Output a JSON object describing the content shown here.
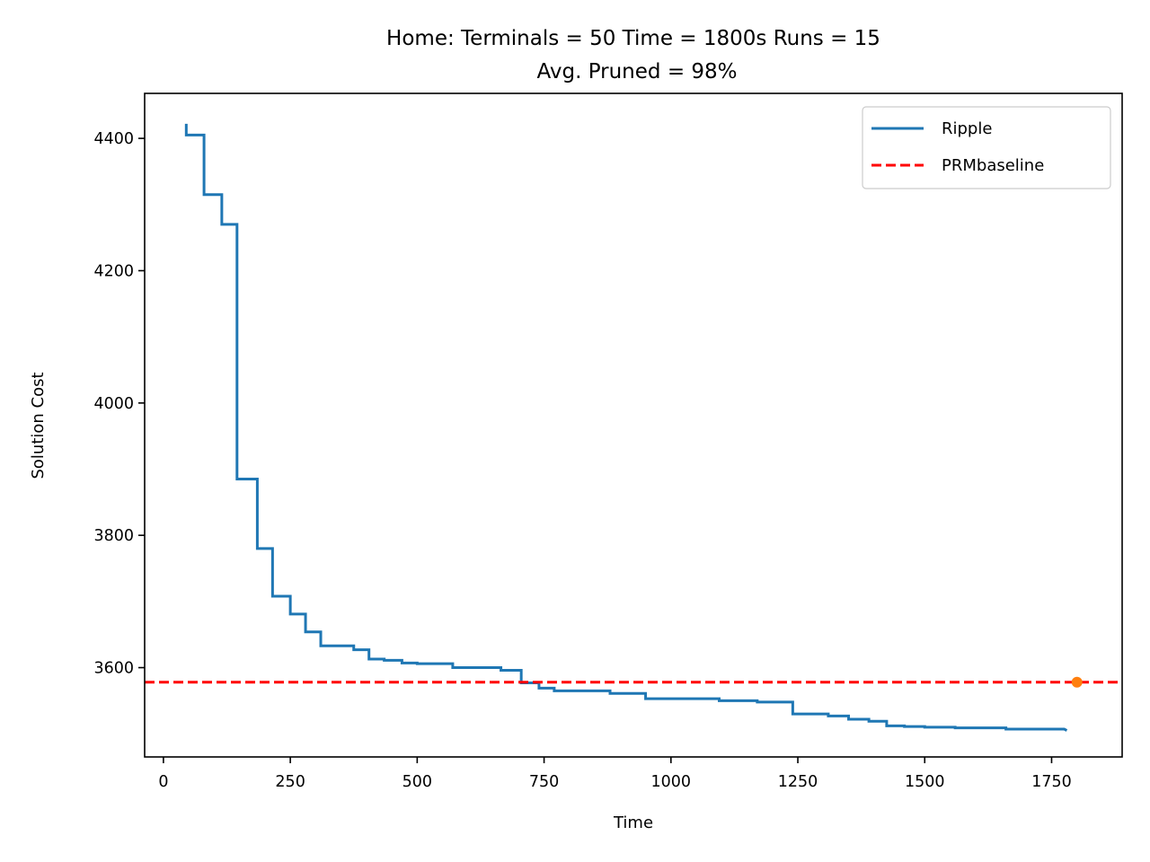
{
  "chart_data": {
    "type": "line",
    "title": "Home:  Terminals = 50  Time = 1800s  Runs = 15",
    "subtitle": "Avg. Pruned = 98%",
    "xlabel": "Time",
    "ylabel": "Solution Cost",
    "xlim": [
      -37,
      1889
    ],
    "ylim": [
      3465,
      4468
    ],
    "xticks": [
      0,
      250,
      500,
      750,
      1000,
      1250,
      1500,
      1750
    ],
    "yticks": [
      3600,
      3800,
      4000,
      4200,
      4400
    ],
    "legend_position": "top-right",
    "series": [
      {
        "name": "Ripple",
        "style": "step",
        "color": "#1f77b4",
        "x": [
          45,
          45,
          80,
          80,
          115,
          115,
          145,
          145,
          185,
          185,
          215,
          215,
          250,
          250,
          280,
          280,
          310,
          310,
          375,
          375,
          405,
          405,
          435,
          435,
          470,
          470,
          500,
          500,
          570,
          570,
          665,
          665,
          705,
          705,
          740,
          740,
          770,
          770,
          880,
          880,
          950,
          950,
          1095,
          1095,
          1170,
          1170,
          1240,
          1240,
          1310,
          1310,
          1350,
          1350,
          1390,
          1390,
          1425,
          1425,
          1460,
          1460,
          1500,
          1500,
          1560,
          1560,
          1660,
          1660,
          1775,
          1780
        ],
        "y": [
          4422,
          4405,
          4405,
          4315,
          4315,
          4270,
          4270,
          3885,
          3885,
          3780,
          3780,
          3708,
          3708,
          3681,
          3681,
          3654,
          3654,
          3633,
          3633,
          3627,
          3627,
          3613,
          3613,
          3611,
          3611,
          3607,
          3607,
          3606,
          3606,
          3600,
          3600,
          3596,
          3596,
          3577,
          3577,
          3569,
          3569,
          3565,
          3565,
          3561,
          3561,
          3553,
          3553,
          3550,
          3550,
          3548,
          3548,
          3530,
          3530,
          3527,
          3527,
          3522,
          3522,
          3519,
          3519,
          3512,
          3512,
          3511,
          3511,
          3510,
          3510,
          3509,
          3509,
          3507,
          3507,
          3505
        ]
      },
      {
        "name": "PRMbaseline",
        "style": "dashed",
        "color": "#ff0000",
        "y": 3578
      }
    ],
    "marker": {
      "x": 1800,
      "y": 3578,
      "color": "#ff7f0e"
    }
  }
}
